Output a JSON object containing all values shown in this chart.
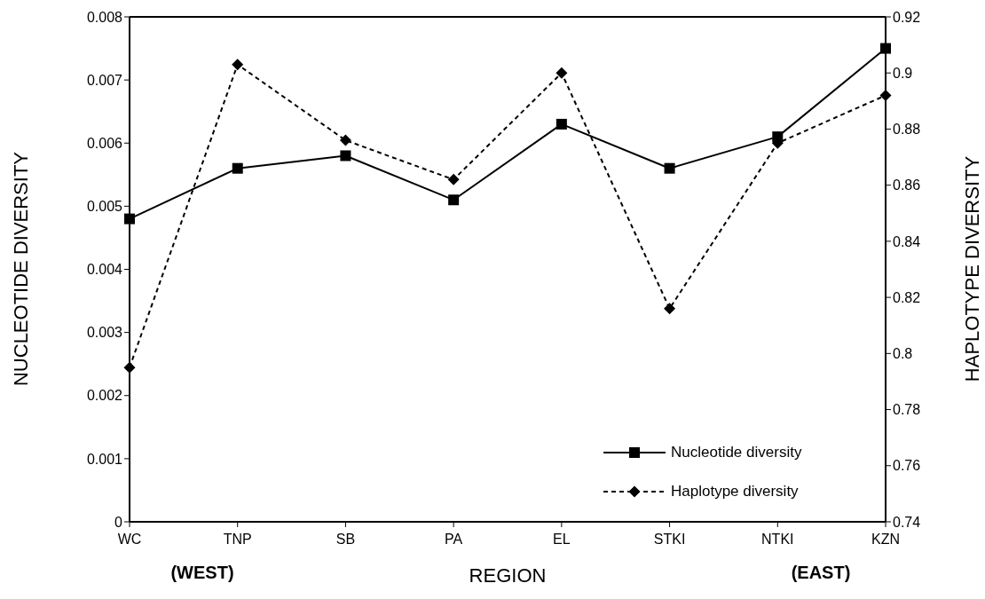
{
  "chart_data": {
    "type": "line",
    "xlabel": "REGION",
    "ylabel": "NUCLEOTIDE DIVERSITY",
    "y2label": "HAPLOTYPE DIVERSITY",
    "categories": [
      "WC",
      "TNP",
      "SB",
      "PA",
      "EL",
      "STKI",
      "NTKI",
      "KZN"
    ],
    "series": [
      {
        "name": "Nucleotide diversity",
        "color": "#000000",
        "marker": "square",
        "line_style": "solid",
        "values": [
          0.0048,
          0.0056,
          0.0058,
          0.0051,
          0.0063,
          0.0056,
          0.0061,
          0.0075
        ]
      },
      {
        "name": "Haplotype diversity",
        "color": "#000000",
        "marker": "diamond",
        "line_style": "dashed",
        "axis": "y2",
        "values": [
          0.795,
          0.903,
          0.876,
          0.862,
          0.9,
          0.816,
          0.875,
          0.892
        ]
      }
    ],
    "ylim": [
      0,
      0.008
    ],
    "yticks": [
      0,
      0.001,
      0.002,
      0.003,
      0.004,
      0.005,
      0.006,
      0.007,
      0.008
    ],
    "y2lim": [
      0.74,
      0.92
    ],
    "y2ticks": [
      0.74,
      0.76,
      0.78,
      0.8,
      0.82,
      0.84,
      0.86,
      0.88,
      0.9,
      0.92
    ],
    "legend": "bottom right",
    "annotations": [
      "(WEST)",
      "(EAST)"
    ]
  }
}
